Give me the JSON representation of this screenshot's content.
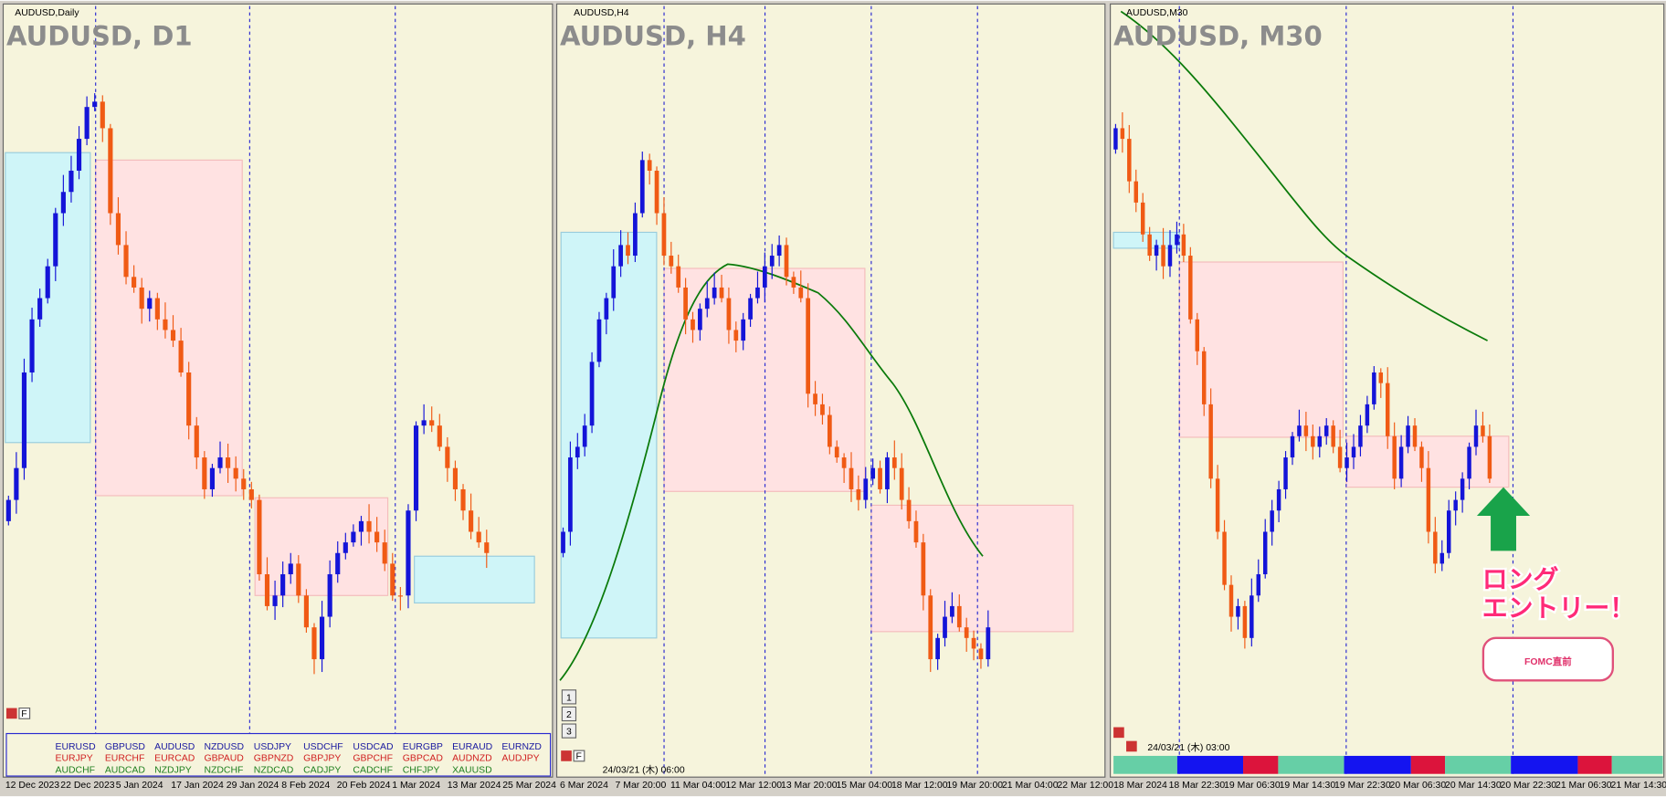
{
  "panels": [
    {
      "label": "AUDUSD,Daily",
      "title": "AUDUSD, D1",
      "dates": [
        "12 Dec 2023",
        "22 Dec 2023",
        "5 Jan 2024",
        "17 Jan 2024",
        "29 Jan 2024",
        "8 Feb 2024",
        "20 Feb 2024",
        "1 Mar 2024",
        "13 Mar 2024",
        "25 Mar 2024"
      ]
    },
    {
      "label": "AUDUSD,H4",
      "title": "AUDUSD, H4",
      "dates": [
        "6 Mar 2024",
        "7 Mar 20:00",
        "11 Mar 04:00",
        "12 Mar 12:00",
        "13 Mar 20:00",
        "15 Mar 04:00",
        "18 Mar 12:00",
        "19 Mar 20:00",
        "21 Mar 04:00",
        "22 Mar 12:00"
      ],
      "buttons": [
        "1",
        "2",
        "3"
      ],
      "timestamp": "24/03/21 (木) 06:00"
    },
    {
      "label": "AUDUSD,M30",
      "title": "AUDUSD, M30",
      "dates": [
        "18 Mar 2024",
        "18 Mar 22:30",
        "19 Mar 06:30",
        "19 Mar 14:30",
        "19 Mar 22:30",
        "20 Mar 06:30",
        "20 Mar 14:30",
        "20 Mar 22:30",
        "21 Mar 06:30",
        "21 Mar 14:30"
      ],
      "timestamp": "24/03/21 (木) 03:00",
      "annotation": [
        "ロング",
        "エントリー！"
      ],
      "badge": "FOMC直前"
    }
  ],
  "symbols": [
    [
      "EURUSD",
      "GBPUSD",
      "AUDUSD",
      "NZDUSD",
      "USDJPY",
      "USDCHF",
      "USDCAD",
      "EURGBP",
      "EURAUD",
      "EURNZD"
    ],
    [
      "EURJPY",
      "EURCHF",
      "EURCAD",
      "GBPAUD",
      "GBPNZD",
      "GBPJPY",
      "GBPCHF",
      "GBPCAD",
      "AUDNZD",
      "AUDJPY"
    ],
    [
      "AUDCHF",
      "AUDCAD",
      "NZDJPY",
      "NZDCHF",
      "NZDCAD",
      "CADJPY",
      "CADCHF",
      "CHFJPY",
      "XAUUSD"
    ]
  ],
  "flag_button": "F"
}
